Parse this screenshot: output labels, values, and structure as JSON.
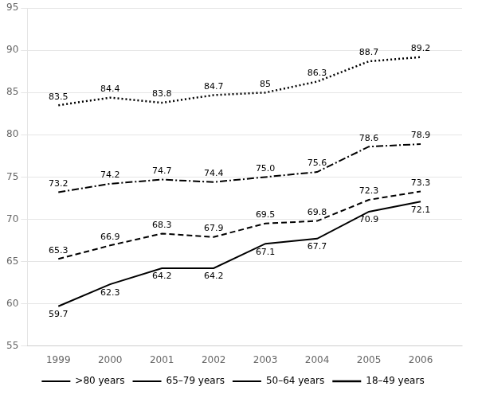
{
  "chart_data": {
    "type": "line",
    "x": [
      1999,
      2000,
      2001,
      2002,
      2003,
      2004,
      2005,
      2006
    ],
    "series": [
      {
        "name": ">80 years",
        "color": "#000000",
        "line_style": "solid",
        "values": [
          59.7,
          62.3,
          64.2,
          64.2,
          67.1,
          67.7,
          70.9,
          72.1
        ]
      },
      {
        "name": "65–79 years",
        "color": "#000000",
        "line_style": "dashed",
        "values": [
          65.3,
          66.9,
          68.3,
          67.9,
          69.5,
          69.8,
          72.3,
          73.3
        ]
      },
      {
        "name": "50–64 years",
        "color": "#000000",
        "line_style": "dashdot",
        "values": [
          73.2,
          74.2,
          74.7,
          74.4,
          75.0,
          75.6,
          78.6,
          78.9
        ],
        "value_labels": [
          "73.2",
          "74.2",
          "74.7",
          "74.4",
          "75.0",
          "75.6",
          "78.6",
          "78.9"
        ]
      },
      {
        "name": "18–49 years",
        "color": "#000000",
        "line_style": "dotted",
        "values": [
          83.5,
          84.4,
          83.8,
          84.7,
          85.0,
          86.3,
          88.7,
          89.2
        ]
      }
    ],
    "xlim": [
      1998.4,
      2006.8
    ],
    "xticks": [
      1999,
      2000,
      2001,
      2002,
      2003,
      2004,
      2005,
      2006
    ],
    "ylim": [
      55,
      95
    ],
    "yticks": [
      55,
      60,
      65,
      70,
      75,
      80,
      85,
      90,
      95
    ],
    "grid": "y",
    "legend": "bottom",
    "data_labels": true
  }
}
